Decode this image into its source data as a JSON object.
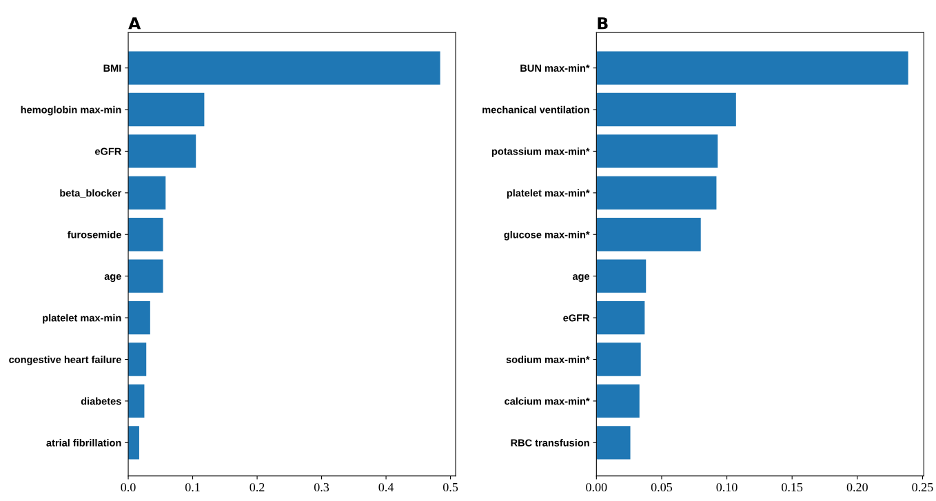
{
  "chart_data": [
    {
      "type": "bar",
      "orientation": "horizontal",
      "title": "A",
      "categories": [
        "BMI",
        "hemoglobin max-min",
        "eGFR",
        "beta_blocker",
        "furosemide",
        "age",
        "platelet max-min",
        "congestive heart failure",
        "diabetes",
        "atrial fibrillation"
      ],
      "values": [
        0.484,
        0.118,
        0.105,
        0.058,
        0.054,
        0.054,
        0.034,
        0.028,
        0.025,
        0.017
      ],
      "color": "#1f77b4",
      "xlim": [
        0,
        0.508
      ],
      "xticks": [
        {
          "value": 0,
          "label": "0.0"
        },
        0.1,
        0.2,
        0.3,
        0.4,
        0.5
      ],
      "grid": false
    },
    {
      "type": "bar",
      "orientation": "horizontal",
      "title": "B",
      "categories": [
        "BUN max-min*",
        "mechanical ventilation",
        "potassium max-min*",
        "platelet max-min*",
        "glucose max-min*",
        "age",
        "eGFR",
        "sodium max-min*",
        "calcium max-min*",
        "RBC transfusion"
      ],
      "values": [
        0.239,
        0.107,
        0.093,
        0.092,
        0.08,
        0.038,
        0.037,
        0.034,
        0.033,
        0.026
      ],
      "color": "#1f77b4",
      "xlim": [
        0,
        0.251
      ],
      "xticks": [
        {
          "value": 0,
          "label": "0.00"
        },
        {
          "value": 0.05,
          "label": "0.05"
        },
        {
          "value": 0.1,
          "label": "0.10"
        },
        {
          "value": 0.15,
          "label": "0.15"
        },
        {
          "value": 0.2,
          "label": "0.20"
        },
        {
          "value": 0.25,
          "label": "0.25"
        }
      ],
      "grid": false
    }
  ]
}
